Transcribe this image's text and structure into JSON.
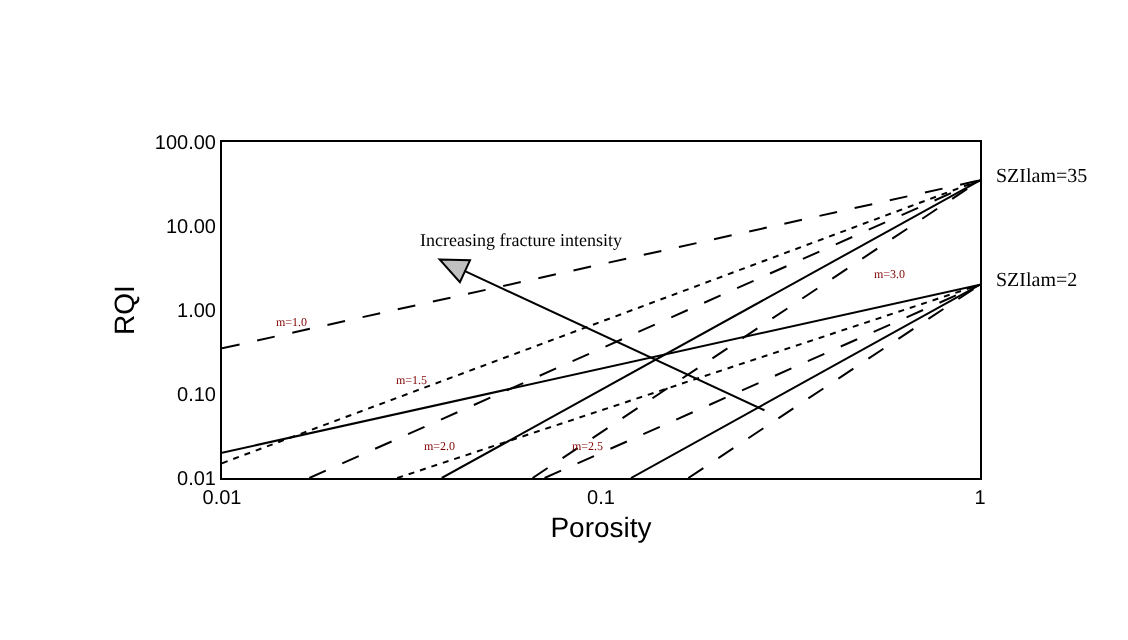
{
  "chart_data": {
    "type": "line",
    "xlabel": "Porosity",
    "ylabel": "RQI",
    "log": "xy",
    "grid": false,
    "marker": "none",
    "xlim": [
      0.01,
      1
    ],
    "xticks": [
      0.01,
      0.1,
      1
    ],
    "ylim": [
      0.01,
      100
    ],
    "yticks": [
      {
        "value": 0.01,
        "label": "0.01"
      },
      {
        "value": 0.1,
        "label": "0.10"
      },
      {
        "value": 1,
        "label": "1.00"
      },
      {
        "value": 10,
        "label": "10.00"
      },
      {
        "value": 100,
        "label": "100.00"
      }
    ],
    "series": [
      {
        "color": "#000000",
        "line_style": "dashed",
        "x": [
          0.01,
          1
        ],
        "values": [
          0.35,
          35
        ]
      },
      {
        "color": "#000000",
        "line_style": "dotted",
        "x": [
          0.01,
          1
        ],
        "values": [
          0.015,
          35
        ]
      },
      {
        "color": "#000000",
        "line_style": "dashed",
        "x": [
          0.017,
          1
        ],
        "values": [
          0.01,
          35
        ]
      },
      {
        "color": "#000000",
        "line_style": "solid",
        "x": [
          0.038,
          1
        ],
        "values": [
          0.01,
          35
        ]
      },
      {
        "color": "#000000",
        "line_style": "dashed",
        "x": [
          0.066,
          1
        ],
        "values": [
          0.01,
          35
        ]
      },
      {
        "color": "#000000",
        "line_style": "solid",
        "x": [
          0.01,
          1
        ],
        "values": [
          0.02,
          2
        ]
      },
      {
        "color": "#000000",
        "line_style": "dotted",
        "x": [
          0.029,
          1
        ],
        "values": [
          0.01,
          2
        ]
      },
      {
        "color": "#000000",
        "line_style": "dashed",
        "x": [
          0.071,
          1
        ],
        "values": [
          0.01,
          2
        ]
      },
      {
        "color": "#000000",
        "line_style": "solid",
        "x": [
          0.12,
          1
        ],
        "values": [
          0.01,
          2
        ]
      },
      {
        "color": "#000000",
        "line_style": "dashed",
        "x": [
          0.17,
          1
        ],
        "values": [
          0.01,
          2
        ]
      }
    ],
    "annotations": [
      "Increasing fracture intensity",
      "m=1.0",
      "m=1.5",
      "m=2.0",
      "m=2.5",
      "m=3.0",
      {
        "text": "SZIlam=35",
        "x": 1,
        "y": 35
      },
      {
        "text": "SZIlam=2",
        "x": 1,
        "y": 2
      }
    ]
  }
}
